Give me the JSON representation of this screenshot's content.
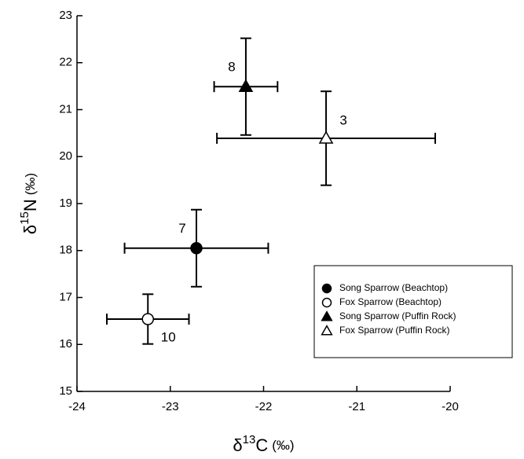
{
  "chart_data": {
    "type": "scatter",
    "x_label": {
      "prefix": "δ",
      "superscript": "13",
      "element": "C",
      "unit": "(‰)"
    },
    "y_label": {
      "prefix": "δ",
      "superscript": "15",
      "element": "N",
      "unit": "(‰)"
    },
    "xlim": [
      -24,
      -20
    ],
    "xticks": [
      -24,
      -23,
      -22,
      -21,
      -20
    ],
    "ylim": [
      15,
      23
    ],
    "yticks": [
      15,
      16,
      17,
      18,
      19,
      20,
      21,
      22,
      23
    ],
    "legend": "lower right",
    "series": [
      {
        "name": "Song Sparrow (Beachtop)",
        "marker": "circle",
        "filled": true,
        "color": "#000000",
        "x": [
          -22.72
        ],
        "values": [
          18.05
        ],
        "xerr": [
          0.77
        ],
        "yerr": [
          0.82
        ],
        "n": [
          7
        ],
        "n_side": "upper left"
      },
      {
        "name": "Fox Sparrow (Beachtop)",
        "marker": "circle",
        "filled": false,
        "color": "#000000",
        "x": [
          -23.24
        ],
        "values": [
          16.54
        ],
        "xerr": [
          0.44
        ],
        "yerr": [
          0.53
        ],
        "n": [
          10
        ],
        "n_side": "lower right"
      },
      {
        "name": "Song Sparrow (Puffin Rock)",
        "marker": "triangle",
        "filled": true,
        "color": "#000000",
        "x": [
          -22.19
        ],
        "values": [
          21.49
        ],
        "xerr": [
          0.34
        ],
        "yerr": [
          1.03
        ],
        "n": [
          8
        ],
        "n_side": "upper left"
      },
      {
        "name": "Fox Sparrow (Puffin Rock)",
        "marker": "triangle",
        "filled": false,
        "color": "#000000",
        "x": [
          -21.33
        ],
        "values": [
          20.39
        ],
        "xerr": [
          1.17
        ],
        "yerr": [
          1.0
        ],
        "n": [
          3
        ],
        "n_side": "upper right"
      }
    ]
  }
}
